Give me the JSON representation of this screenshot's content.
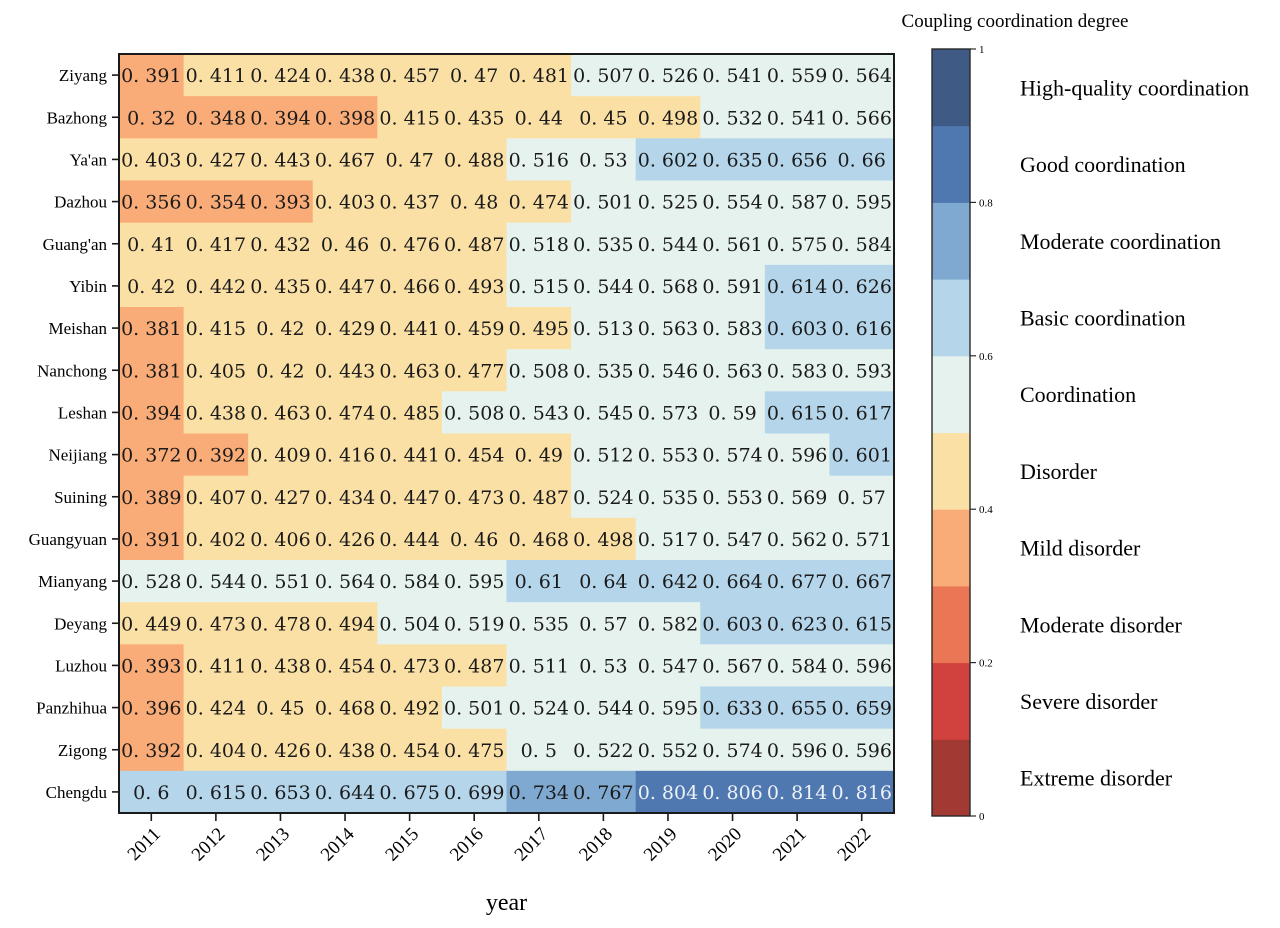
{
  "chart_data": {
    "type": "heatmap",
    "title": "",
    "xlabel": "year",
    "ylabel": "",
    "x": [
      "2011",
      "2012",
      "2013",
      "2014",
      "2015",
      "2016",
      "2017",
      "2018",
      "2019",
      "2020",
      "2021",
      "2022"
    ],
    "y": [
      "Ziyang",
      "Bazhong",
      "Ya'an",
      "Dazhou",
      "Guang'an",
      "Yibin",
      "Meishan",
      "Nanchong",
      "Leshan",
      "Neijiang",
      "Suining",
      "Guangyuan",
      "Mianyang",
      "Deyang",
      "Luzhou",
      "Panzhihua",
      "Zigong",
      "Chengdu"
    ],
    "values": [
      [
        0.391,
        0.411,
        0.424,
        0.438,
        0.457,
        0.47,
        0.481,
        0.507,
        0.526,
        0.541,
        0.559,
        0.564
      ],
      [
        0.32,
        0.348,
        0.394,
        0.398,
        0.415,
        0.435,
        0.44,
        0.45,
        0.498,
        0.532,
        0.541,
        0.566
      ],
      [
        0.403,
        0.427,
        0.443,
        0.467,
        0.47,
        0.488,
        0.516,
        0.53,
        0.602,
        0.635,
        0.656,
        0.66
      ],
      [
        0.356,
        0.354,
        0.393,
        0.403,
        0.437,
        0.48,
        0.474,
        0.501,
        0.525,
        0.554,
        0.587,
        0.595
      ],
      [
        0.41,
        0.417,
        0.432,
        0.46,
        0.476,
        0.487,
        0.518,
        0.535,
        0.544,
        0.561,
        0.575,
        0.584
      ],
      [
        0.42,
        0.442,
        0.435,
        0.447,
        0.466,
        0.493,
        0.515,
        0.544,
        0.568,
        0.591,
        0.614,
        0.626
      ],
      [
        0.381,
        0.415,
        0.42,
        0.429,
        0.441,
        0.459,
        0.495,
        0.513,
        0.563,
        0.583,
        0.603,
        0.616
      ],
      [
        0.381,
        0.405,
        0.42,
        0.443,
        0.463,
        0.477,
        0.508,
        0.535,
        0.546,
        0.563,
        0.583,
        0.593
      ],
      [
        0.394,
        0.438,
        0.463,
        0.474,
        0.485,
        0.508,
        0.543,
        0.545,
        0.573,
        0.59,
        0.615,
        0.617
      ],
      [
        0.372,
        0.392,
        0.409,
        0.416,
        0.441,
        0.454,
        0.49,
        0.512,
        0.553,
        0.574,
        0.596,
        0.601
      ],
      [
        0.389,
        0.407,
        0.427,
        0.434,
        0.447,
        0.473,
        0.487,
        0.524,
        0.535,
        0.553,
        0.569,
        0.57
      ],
      [
        0.391,
        0.402,
        0.406,
        0.426,
        0.444,
        0.46,
        0.468,
        0.498,
        0.517,
        0.547,
        0.562,
        0.571
      ],
      [
        0.528,
        0.544,
        0.551,
        0.564,
        0.584,
        0.595,
        0.61,
        0.64,
        0.642,
        0.664,
        0.677,
        0.667
      ],
      [
        0.449,
        0.473,
        0.478,
        0.494,
        0.504,
        0.519,
        0.535,
        0.57,
        0.582,
        0.603,
        0.623,
        0.615
      ],
      [
        0.393,
        0.411,
        0.438,
        0.454,
        0.473,
        0.487,
        0.511,
        0.53,
        0.547,
        0.567,
        0.584,
        0.596
      ],
      [
        0.396,
        0.424,
        0.45,
        0.468,
        0.492,
        0.501,
        0.524,
        0.544,
        0.595,
        0.633,
        0.655,
        0.659
      ],
      [
        0.392,
        0.404,
        0.426,
        0.438,
        0.454,
        0.475,
        0.5,
        0.522,
        0.552,
        0.574,
        0.596,
        0.596
      ],
      [
        0.6,
        0.615,
        0.653,
        0.644,
        0.675,
        0.699,
        0.734,
        0.767,
        0.804,
        0.806,
        0.814,
        0.816
      ]
    ],
    "value_labels": [
      [
        "0. 391",
        "0. 411",
        "0. 424",
        "0. 438",
        "0. 457",
        "0. 47",
        "0. 481",
        "0. 507",
        "0. 526",
        "0. 541",
        "0. 559",
        "0. 564"
      ],
      [
        "0. 32",
        "0. 348",
        "0. 394",
        "0. 398",
        "0. 415",
        "0. 435",
        "0. 44",
        "0. 45",
        "0. 498",
        "0. 532",
        "0. 541",
        "0. 566"
      ],
      [
        "0. 403",
        "0. 427",
        "0. 443",
        "0. 467",
        "0. 47",
        "0. 488",
        "0. 516",
        "0. 53",
        "0. 602",
        "0. 635",
        "0. 656",
        "0. 66"
      ],
      [
        "0. 356",
        "0. 354",
        "0. 393",
        "0. 403",
        "0. 437",
        "0. 48",
        "0. 474",
        "0. 501",
        "0. 525",
        "0. 554",
        "0. 587",
        "0. 595"
      ],
      [
        "0. 41",
        "0. 417",
        "0. 432",
        "0. 46",
        "0. 476",
        "0. 487",
        "0. 518",
        "0. 535",
        "0. 544",
        "0. 561",
        "0. 575",
        "0. 584"
      ],
      [
        "0. 42",
        "0. 442",
        "0. 435",
        "0. 447",
        "0. 466",
        "0. 493",
        "0. 515",
        "0. 544",
        "0. 568",
        "0. 591",
        "0. 614",
        "0. 626"
      ],
      [
        "0. 381",
        "0. 415",
        "0. 42",
        "0. 429",
        "0. 441",
        "0. 459",
        "0. 495",
        "0. 513",
        "0. 563",
        "0. 583",
        "0. 603",
        "0. 616"
      ],
      [
        "0. 381",
        "0. 405",
        "0. 42",
        "0. 443",
        "0. 463",
        "0. 477",
        "0. 508",
        "0. 535",
        "0. 546",
        "0. 563",
        "0. 583",
        "0. 593"
      ],
      [
        "0. 394",
        "0. 438",
        "0. 463",
        "0. 474",
        "0. 485",
        "0. 508",
        "0. 543",
        "0. 545",
        "0. 573",
        "0. 59",
        "0. 615",
        "0. 617"
      ],
      [
        "0. 372",
        "0. 392",
        "0. 409",
        "0. 416",
        "0. 441",
        "0. 454",
        "0. 49",
        "0. 512",
        "0. 553",
        "0. 574",
        "0. 596",
        "0. 601"
      ],
      [
        "0. 389",
        "0. 407",
        "0. 427",
        "0. 434",
        "0. 447",
        "0. 473",
        "0. 487",
        "0. 524",
        "0. 535",
        "0. 553",
        "0. 569",
        "0. 57"
      ],
      [
        "0. 391",
        "0. 402",
        "0. 406",
        "0. 426",
        "0. 444",
        "0. 46",
        "0. 468",
        "0. 498",
        "0. 517",
        "0. 547",
        "0. 562",
        "0. 571"
      ],
      [
        "0. 528",
        "0. 544",
        "0. 551",
        "0. 564",
        "0. 584",
        "0. 595",
        "0. 61",
        "0. 64",
        "0. 642",
        "0. 664",
        "0. 677",
        "0. 667"
      ],
      [
        "0. 449",
        "0. 473",
        "0. 478",
        "0. 494",
        "0. 504",
        "0. 519",
        "0. 535",
        "0. 57",
        "0. 582",
        "0. 603",
        "0. 623",
        "0. 615"
      ],
      [
        "0. 393",
        "0. 411",
        "0. 438",
        "0. 454",
        "0. 473",
        "0. 487",
        "0. 511",
        "0. 53",
        "0. 547",
        "0. 567",
        "0. 584",
        "0. 596"
      ],
      [
        "0. 396",
        "0. 424",
        "0. 45",
        "0. 468",
        "0. 492",
        "0. 501",
        "0. 524",
        "0. 544",
        "0. 595",
        "0. 633",
        "0. 655",
        "0. 659"
      ],
      [
        "0. 392",
        "0. 404",
        "0. 426",
        "0. 438",
        "0. 454",
        "0. 475",
        "0. 5",
        "0. 522",
        "0. 552",
        "0. 574",
        "0. 596",
        "0. 596"
      ],
      [
        "0. 6",
        "0. 615",
        "0. 653",
        "0. 644",
        "0. 675",
        "0. 699",
        "0. 734",
        "0. 767",
        "0. 804",
        "0. 806",
        "0. 814",
        "0. 816"
      ]
    ],
    "colorbar": {
      "title": "Coupling coordination degree",
      "range": [
        0,
        1
      ],
      "ticks": [
        0,
        0.2,
        0.4,
        0.6,
        0.8,
        1
      ],
      "tick_labels": [
        "0",
        "0.2",
        "0.4",
        "0.6",
        "0.8",
        "1"
      ],
      "bins": [
        {
          "min": 0.0,
          "max": 0.1,
          "label": "Extreme disorder",
          "color": "#a23a33"
        },
        {
          "min": 0.1,
          "max": 0.2,
          "label": "Severe disorder",
          "color": "#d1413e"
        },
        {
          "min": 0.2,
          "max": 0.3,
          "label": "Moderate disorder",
          "color": "#eb7656"
        },
        {
          "min": 0.3,
          "max": 0.4,
          "label": "Mild disorder",
          "color": "#f9ac77"
        },
        {
          "min": 0.4,
          "max": 0.5,
          "label": "Disorder",
          "color": "#fbe0a6"
        },
        {
          "min": 0.5,
          "max": 0.6,
          "label": "Coordination",
          "color": "#e6f2ee"
        },
        {
          "min": 0.6,
          "max": 0.7,
          "label": "Basic coordination",
          "color": "#b4d5ea"
        },
        {
          "min": 0.7,
          "max": 0.8,
          "label": "Moderate coordination",
          "color": "#7fa9d0"
        },
        {
          "min": 0.8,
          "max": 0.9,
          "label": "Good coordination",
          "color": "#4f78b0"
        },
        {
          "min": 0.9,
          "max": 1.0,
          "label": "High-quality coordination",
          "color": "#3f5b85"
        }
      ]
    },
    "light_text_threshold": 0.8,
    "grid": false,
    "legend_position": "right"
  }
}
